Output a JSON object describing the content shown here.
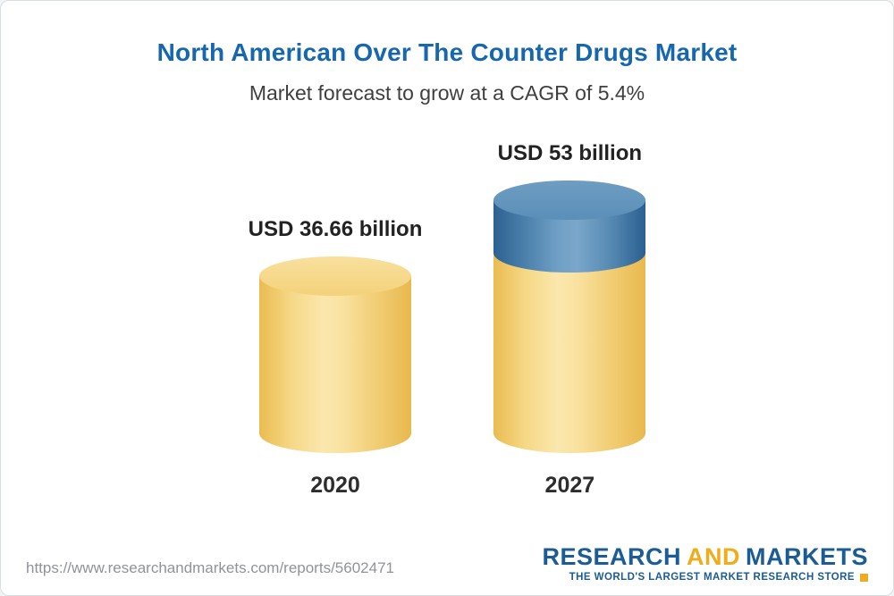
{
  "chart_data": {
    "type": "bar",
    "bar_style": "3d-cylinder",
    "title": "North American Over The Counter Drugs Market",
    "subtitle": "Market forecast to grow at a CAGR of 5.4%",
    "categories": [
      "2020",
      "2027"
    ],
    "values": [
      36.66,
      53
    ],
    "value_labels": [
      "USD 36.66 billion",
      "USD 53 billion"
    ],
    "xlabel": "",
    "ylabel": "USD billion",
    "cagr_percent": 5.4,
    "legend": "off",
    "grid": "off",
    "colors": {
      "base_segment": "#F5CE6E",
      "growth_segment": "#4E81AC",
      "title": "#1767AE"
    }
  },
  "footer": {
    "url": "https://www.researchandmarkets.com/reports/5602471",
    "logo": {
      "research": "RESEARCH",
      "and": "AND",
      "markets": "MARKETS",
      "tagline": "THE WORLD'S LARGEST MARKET RESEARCH STORE"
    }
  }
}
